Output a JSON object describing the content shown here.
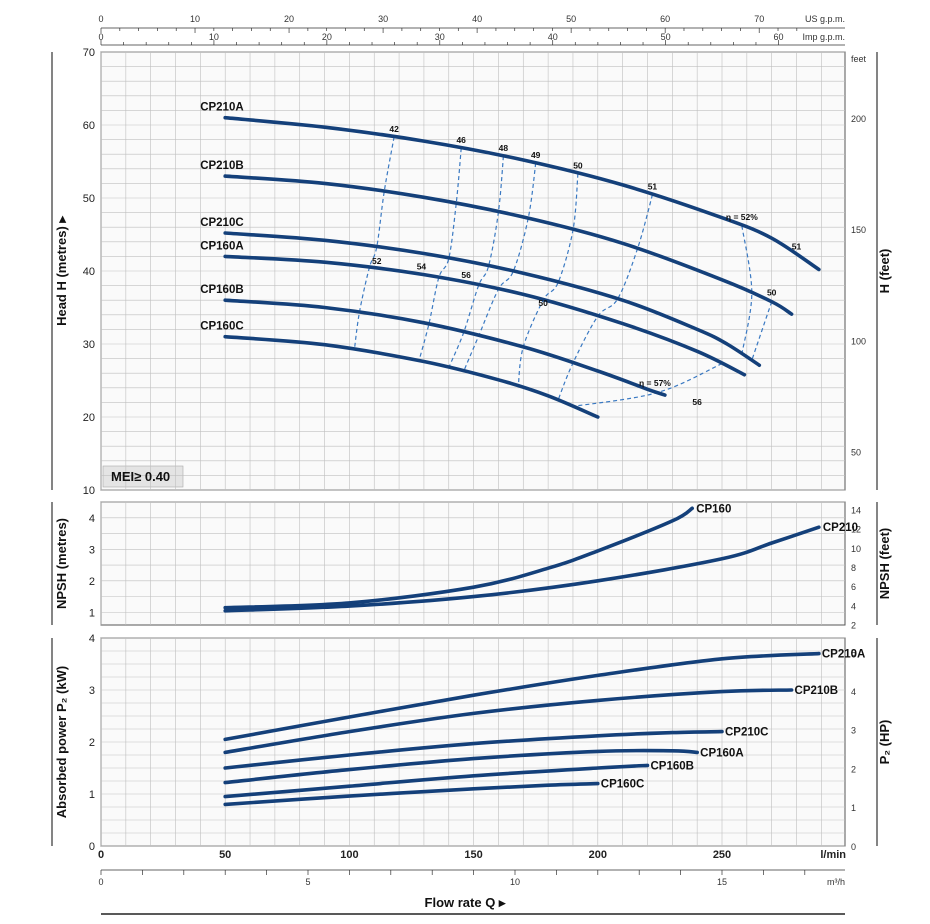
{
  "axes": {
    "top_usgpm": {
      "unit": "US g.p.m.",
      "ticks": [
        0,
        10,
        20,
        30,
        40,
        50,
        60,
        70
      ]
    },
    "top_impgpm": {
      "unit": "Imp g.p.m.",
      "ticks": [
        0,
        10,
        20,
        30,
        40,
        50,
        60
      ]
    },
    "bottom_lmin": {
      "unit": "l/min",
      "ticks": [
        0,
        50,
        100,
        150,
        200,
        250
      ]
    },
    "bottom_m3h": {
      "unit": "m³/h",
      "ticks": [
        0,
        5,
        10,
        15
      ]
    },
    "xlabel": "Flow rate Q ▸"
  },
  "head_panel": {
    "ylabel_left": "Head H  (metres) ▸",
    "ylabel_right": "H (feet)",
    "left_ticks": [
      10,
      20,
      30,
      40,
      50,
      60,
      70
    ],
    "right_unit": "feet",
    "right_ticks": [
      50,
      100,
      150,
      200
    ],
    "mei_label": "MEI≥ 0.40"
  },
  "npsh_panel": {
    "ylabel_left": "NPSH (metres)",
    "ylabel_right": "NPSH (feet)",
    "left_ticks": [
      1,
      2,
      3,
      4
    ],
    "right_ticks": [
      2,
      4,
      6,
      8,
      10,
      12,
      14
    ]
  },
  "power_panel": {
    "ylabel_left": "Absorbed power P₂ (kW)",
    "ylabel_right": "P₂ (HP)",
    "left_ticks": [
      0,
      1,
      2,
      3,
      4
    ],
    "right_ticks": [
      0,
      1,
      2,
      3,
      4,
      5
    ]
  },
  "chart_data": [
    {
      "type": "line",
      "xlabel": "Flow rate Q",
      "ylabel": "Head H (metres)",
      "xlim": [
        0,
        290
      ],
      "ylim": [
        10,
        70
      ],
      "series": [
        {
          "name": "CP210A",
          "x": [
            50,
            90,
            130,
            170,
            210,
            250,
            270,
            289
          ],
          "y": [
            61,
            59.7,
            57.8,
            55.2,
            51.8,
            47.3,
            44.5,
            40.2
          ]
        },
        {
          "name": "CP210B",
          "x": [
            50,
            90,
            130,
            170,
            210,
            250,
            270,
            278
          ],
          "y": [
            53,
            52,
            50.1,
            47.4,
            43.8,
            38.8,
            35.8,
            34.1
          ]
        },
        {
          "name": "CP210C",
          "x": [
            50,
            90,
            130,
            170,
            210,
            240,
            252,
            265
          ],
          "y": [
            45.2,
            44.2,
            42.4,
            39.7,
            36,
            32,
            30,
            27.1
          ]
        },
        {
          "name": "CP160A",
          "x": [
            50,
            90,
            130,
            170,
            210,
            240,
            259
          ],
          "y": [
            42,
            41.2,
            39.5,
            36.8,
            32.8,
            29,
            25.8
          ]
        },
        {
          "name": "CP160B",
          "x": [
            50,
            90,
            130,
            170,
            200,
            220,
            227
          ],
          "y": [
            36,
            35,
            32.9,
            29.6,
            26.3,
            23.8,
            23
          ]
        },
        {
          "name": "CP160C",
          "x": [
            50,
            90,
            130,
            160,
            180,
            200
          ],
          "y": [
            31,
            29.9,
            27.6,
            25.1,
            22.9,
            20
          ]
        }
      ],
      "annotations": [
        "42",
        "46",
        "48",
        "49",
        "50",
        "51",
        "η = 52%",
        "51",
        "50",
        "52",
        "54",
        "56",
        "50",
        "η = 57%",
        "56"
      ]
    },
    {
      "type": "line",
      "xlabel": "Flow rate Q",
      "ylabel": "NPSH (metres)",
      "xlim": [
        0,
        290
      ],
      "ylim": [
        0,
        4.5
      ],
      "series": [
        {
          "name": "CP160",
          "x": [
            50,
            100,
            150,
            180,
            200,
            230,
            238
          ],
          "y": [
            1.15,
            1.3,
            1.8,
            2.4,
            2.95,
            3.9,
            4.3
          ]
        },
        {
          "name": "CP210",
          "x": [
            50,
            100,
            150,
            200,
            250,
            270,
            289
          ],
          "y": [
            1.05,
            1.2,
            1.5,
            2,
            2.7,
            3.2,
            3.7
          ]
        }
      ]
    },
    {
      "type": "line",
      "xlabel": "Flow rate Q",
      "ylabel": "Absorbed power P₂ (kW)",
      "xlim": [
        0,
        290
      ],
      "ylim": [
        0,
        4
      ],
      "series": [
        {
          "name": "CP210A",
          "x": [
            50,
            100,
            150,
            200,
            250,
            289
          ],
          "y": [
            2.05,
            2.48,
            2.9,
            3.28,
            3.6,
            3.7
          ]
        },
        {
          "name": "CP210B",
          "x": [
            50,
            100,
            150,
            200,
            250,
            278
          ],
          "y": [
            1.8,
            2.2,
            2.55,
            2.8,
            2.97,
            3
          ]
        },
        {
          "name": "CP210C",
          "x": [
            50,
            100,
            150,
            200,
            230,
            250
          ],
          "y": [
            1.5,
            1.75,
            1.97,
            2.12,
            2.18,
            2.2
          ]
        },
        {
          "name": "CP160A",
          "x": [
            50,
            100,
            150,
            200,
            230,
            240
          ],
          "y": [
            1.22,
            1.47,
            1.68,
            1.82,
            1.83,
            1.8
          ]
        },
        {
          "name": "CP160B",
          "x": [
            50,
            100,
            150,
            200,
            220
          ],
          "y": [
            0.95,
            1.15,
            1.35,
            1.5,
            1.55
          ]
        },
        {
          "name": "CP160C",
          "x": [
            50,
            100,
            150,
            180,
            200
          ],
          "y": [
            0.8,
            0.96,
            1.1,
            1.17,
            1.2
          ]
        }
      ]
    }
  ]
}
